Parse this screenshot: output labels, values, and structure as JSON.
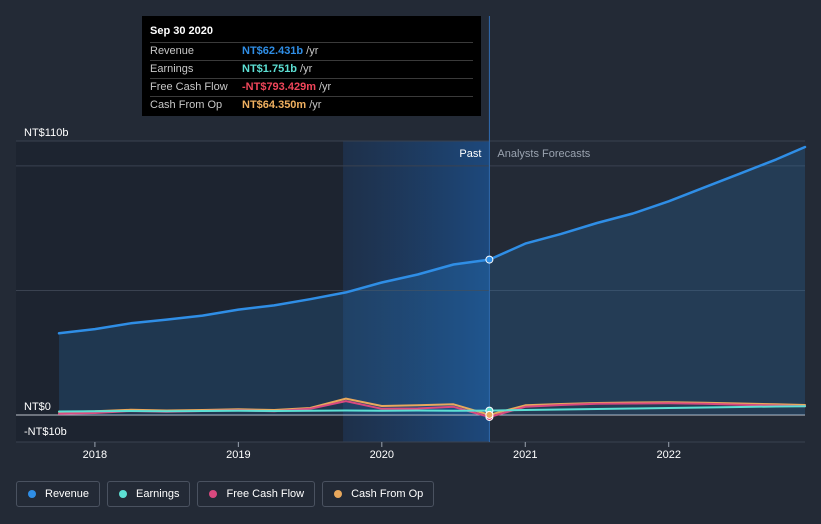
{
  "tooltip": {
    "date": "Sep 30 2020",
    "rows": [
      {
        "label": "Revenue",
        "value": "NT$62.431b",
        "unit": "/yr",
        "color": "#2f8ee6"
      },
      {
        "label": "Earnings",
        "value": "NT$1.751b",
        "unit": "/yr",
        "color": "#5de0d4"
      },
      {
        "label": "Free Cash Flow",
        "value": "-NT$793.429m",
        "unit": "/yr",
        "color": "#f0465a"
      },
      {
        "label": "Cash From Op",
        "value": "NT$64.350m",
        "unit": "/yr",
        "color": "#f0b060"
      }
    ]
  },
  "legend": [
    {
      "label": "Revenue",
      "color": "#2f8ee6"
    },
    {
      "label": "Earnings",
      "color": "#5de0d4"
    },
    {
      "label": "Free Cash Flow",
      "color": "#d9497f"
    },
    {
      "label": "Cash From Op",
      "color": "#e8a85c"
    }
  ],
  "chart_data": {
    "type": "line",
    "title": "",
    "xlabel": "",
    "ylabel": "",
    "unit": "NT$ billions",
    "ylim": [
      -10,
      110
    ],
    "y_tick_labels": [
      {
        "value": 110,
        "label": "NT$110b"
      },
      {
        "value": 0,
        "label": "NT$0"
      },
      {
        "value": -10,
        "label": "-NT$10b"
      }
    ],
    "x_tick_labels": [
      {
        "value": 2018,
        "label": "2018"
      },
      {
        "value": 2019,
        "label": "2019"
      },
      {
        "value": 2020,
        "label": "2020"
      },
      {
        "value": 2021,
        "label": "2021"
      },
      {
        "value": 2022,
        "label": "2022"
      }
    ],
    "xlim": [
      2017.45,
      2022.95
    ],
    "past_label": "Past",
    "forecast_label": "Analysts Forecasts",
    "highlight_start": 2019.73,
    "past_end": 2020.75,
    "series": [
      {
        "name": "Revenue",
        "color": "#2f8ee6",
        "points": [
          [
            2017.75,
            32.8
          ],
          [
            2018.0,
            34.5
          ],
          [
            2018.25,
            36.8
          ],
          [
            2018.5,
            38.3
          ],
          [
            2018.75,
            39.9
          ],
          [
            2019.0,
            42.3
          ],
          [
            2019.25,
            44.0
          ],
          [
            2019.5,
            46.5
          ],
          [
            2019.75,
            49.2
          ],
          [
            2020.0,
            53.2
          ],
          [
            2020.25,
            56.4
          ],
          [
            2020.5,
            60.4
          ],
          [
            2020.75,
            62.4
          ],
          [
            2021.0,
            68.8
          ],
          [
            2021.25,
            72.7
          ],
          [
            2021.5,
            77.1
          ],
          [
            2021.75,
            80.9
          ],
          [
            2022.0,
            85.8
          ],
          [
            2022.25,
            91.4
          ],
          [
            2022.5,
            97.0
          ],
          [
            2022.75,
            102.6
          ],
          [
            2022.95,
            107.6
          ]
        ]
      },
      {
        "name": "Earnings",
        "color": "#5de0d4",
        "points": [
          [
            2017.75,
            1.4
          ],
          [
            2018.0,
            1.5
          ],
          [
            2018.25,
            1.6
          ],
          [
            2018.5,
            1.5
          ],
          [
            2018.75,
            1.6
          ],
          [
            2019.0,
            1.7
          ],
          [
            2019.25,
            1.6
          ],
          [
            2019.5,
            1.7
          ],
          [
            2019.75,
            1.8
          ],
          [
            2020.0,
            1.7
          ],
          [
            2020.25,
            1.8
          ],
          [
            2020.5,
            1.7
          ],
          [
            2020.75,
            1.75
          ],
          [
            2021.0,
            2.0
          ],
          [
            2021.25,
            2.2
          ],
          [
            2021.5,
            2.4
          ],
          [
            2021.75,
            2.6
          ],
          [
            2022.0,
            2.8
          ],
          [
            2022.25,
            3.0
          ],
          [
            2022.5,
            3.2
          ],
          [
            2022.75,
            3.4
          ],
          [
            2022.95,
            3.5
          ]
        ]
      },
      {
        "name": "Free Cash Flow",
        "color": "#d9497f",
        "points": [
          [
            2017.75,
            0.5
          ],
          [
            2018.0,
            0.8
          ],
          [
            2018.25,
            1.6
          ],
          [
            2018.5,
            1.3
          ],
          [
            2018.75,
            1.6
          ],
          [
            2019.0,
            1.9
          ],
          [
            2019.25,
            1.5
          ],
          [
            2019.5,
            2.5
          ],
          [
            2019.75,
            5.6
          ],
          [
            2020.0,
            2.5
          ],
          [
            2020.25,
            2.6
          ],
          [
            2020.5,
            3.3
          ],
          [
            2020.75,
            -0.79
          ],
          [
            2021.0,
            3.3
          ],
          [
            2021.25,
            4.0
          ],
          [
            2021.5,
            4.5
          ],
          [
            2021.75,
            4.6
          ],
          [
            2022.0,
            4.7
          ],
          [
            2022.25,
            4.5
          ],
          [
            2022.5,
            4.1
          ],
          [
            2022.75,
            3.8
          ],
          [
            2022.95,
            3.5
          ]
        ]
      },
      {
        "name": "Cash From Op",
        "color": "#e8a85c",
        "points": [
          [
            2017.75,
            1.2
          ],
          [
            2018.0,
            1.5
          ],
          [
            2018.25,
            2.1
          ],
          [
            2018.5,
            1.8
          ],
          [
            2018.75,
            2.0
          ],
          [
            2019.0,
            2.3
          ],
          [
            2019.25,
            2.0
          ],
          [
            2019.5,
            2.8
          ],
          [
            2019.75,
            6.6
          ],
          [
            2020.0,
            3.6
          ],
          [
            2020.25,
            3.9
          ],
          [
            2020.5,
            4.3
          ],
          [
            2020.75,
            0.064
          ],
          [
            2021.0,
            3.9
          ],
          [
            2021.25,
            4.4
          ],
          [
            2021.5,
            4.8
          ],
          [
            2021.75,
            5.0
          ],
          [
            2022.0,
            5.1
          ],
          [
            2022.25,
            4.9
          ],
          [
            2022.5,
            4.6
          ],
          [
            2022.75,
            4.3
          ],
          [
            2022.95,
            4.0
          ]
        ]
      }
    ]
  }
}
